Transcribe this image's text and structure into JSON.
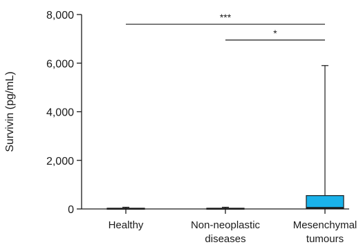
{
  "chart_data": {
    "type": "boxplot",
    "title": "",
    "xlabel": "",
    "ylabel": "Survivin (pg/mL)",
    "ylim": [
      0,
      8000
    ],
    "yticks": [
      0,
      2000,
      4000,
      6000,
      8000
    ],
    "ytick_labels": [
      "0",
      "2,000",
      "4,000",
      "6,000",
      "8,000"
    ],
    "categories": [
      {
        "lines": [
          "Healthy"
        ]
      },
      {
        "lines": [
          "Non-neoplastic",
          "diseases"
        ]
      },
      {
        "lines": [
          "Mesenchymal",
          "tumours"
        ]
      }
    ],
    "boxes": [
      {
        "category": "Healthy",
        "min": 0,
        "q1": 0,
        "median": 10,
        "q3": 30,
        "max": 70,
        "fill": "#ffffff"
      },
      {
        "category": "Non-neoplastic diseases",
        "min": 0,
        "q1": 0,
        "median": 10,
        "q3": 30,
        "max": 70,
        "fill": "#ffffff"
      },
      {
        "category": "Mesenchymal tumours",
        "min": 0,
        "q1": 30,
        "median": 60,
        "q3": 550,
        "max": 5900,
        "fill": "#1ab2ea"
      }
    ],
    "significance": [
      {
        "from": 0,
        "to": 2,
        "y": 7600,
        "label": "***"
      },
      {
        "from": 1,
        "to": 2,
        "y": 6950,
        "label": "*"
      }
    ],
    "grid": false,
    "colors": {
      "axis": "#1a1a1a",
      "box_fill_highlight": "#1ab2ea"
    }
  }
}
